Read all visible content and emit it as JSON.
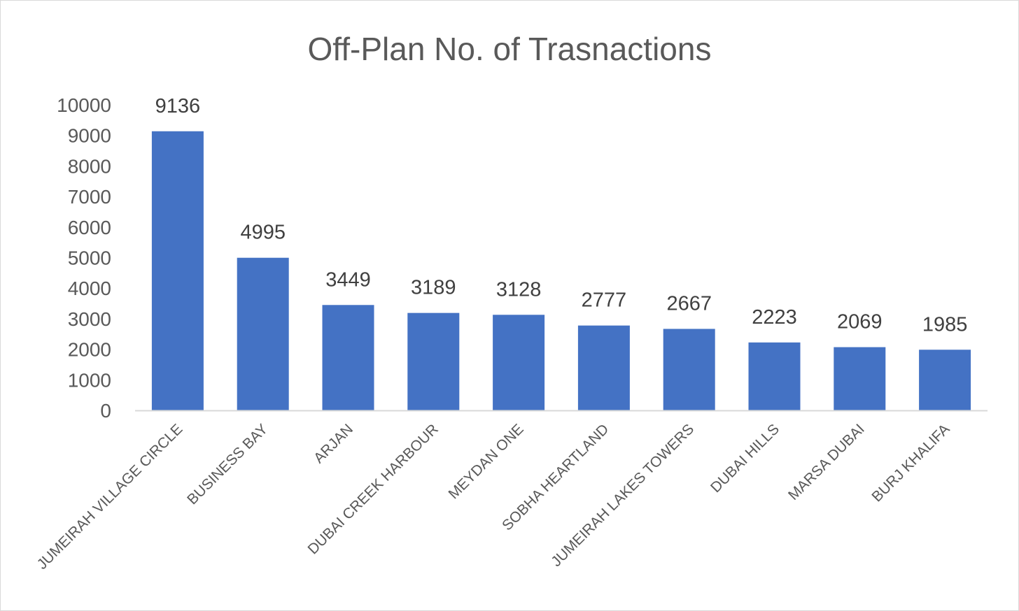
{
  "chart_data": {
    "type": "bar",
    "title": "Off-Plan No. of Trasnactions",
    "xlabel": "",
    "ylabel": "",
    "categories": [
      "JUMEIRAH VILLAGE CIRCLE",
      "BUSINESS BAY",
      "ARJAN",
      "DUBAI CREEK HARBOUR",
      "MEYDAN ONE",
      "SOBHA HEARTLAND",
      "JUMEIRAH LAKES TOWERS",
      "DUBAI HILLS",
      "MARSA DUBAI",
      "BURJ KHALIFA"
    ],
    "values": [
      9136,
      4995,
      3449,
      3189,
      3128,
      2777,
      2667,
      2223,
      2069,
      1985
    ],
    "ylim": [
      0,
      10000
    ],
    "yticks": [
      0,
      1000,
      2000,
      3000,
      4000,
      5000,
      6000,
      7000,
      8000,
      9000,
      10000
    ],
    "grid": false,
    "legend": "none",
    "bar_color": "#4472c4",
    "axis_color": "#d9d9d9"
  }
}
